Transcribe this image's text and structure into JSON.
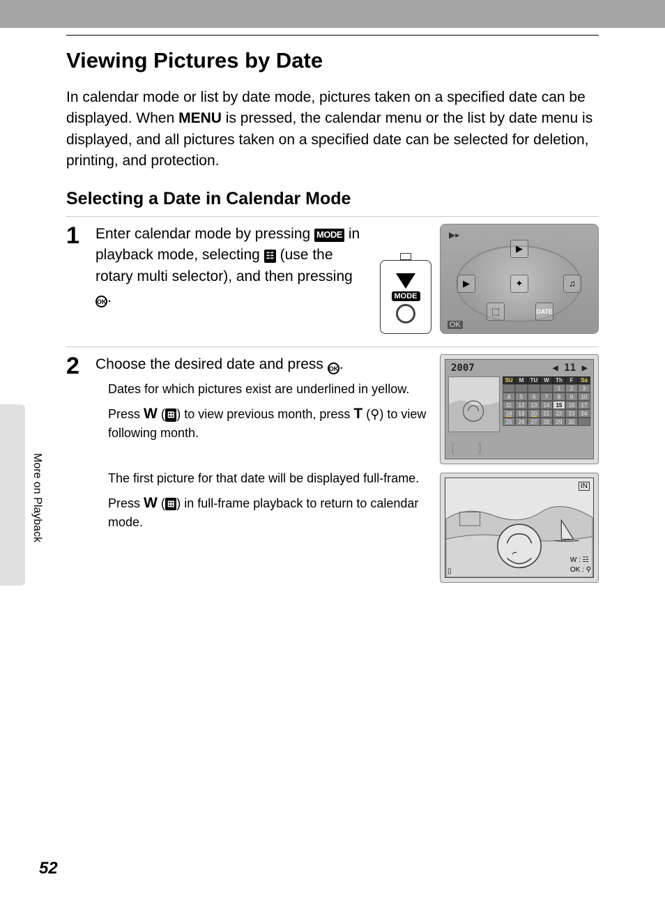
{
  "page_title": "Viewing Pictures by Date",
  "intro_parts": {
    "a": "In calendar mode or list by date mode, pictures taken on a specified date can be displayed. When ",
    "menu": "MENU",
    "b": " is pressed, the calendar menu or the list by date menu is displayed, and all pictures taken on a specified date can be selected for deletion, printing, and protection."
  },
  "subhead": "Selecting a Date in Calendar Mode",
  "steps": {
    "1": {
      "num": "1",
      "main_a": "Enter calendar mode by pressing ",
      "mode": "MODE",
      "main_b": " in playback mode, selecting ",
      "main_c": " (use the rotary multi selector), and then pressing ",
      "ok": "OK",
      "main_d": "."
    },
    "2": {
      "num": "2",
      "main_a": "Choose the desired date and press ",
      "ok": "OK",
      "main_b": ".",
      "sub1": "Dates for which pictures exist are underlined in yellow.",
      "sub2_a": "Press ",
      "w": "W",
      "sub2_b": " (",
      "sub2_c": ") to view previous month, press ",
      "t": "T",
      "sub2_d": " (",
      "sub2_e": ") to view following month.",
      "sub3": "The first picture for that date will be displayed full-frame.",
      "sub4_a": "Press ",
      "sub4_b": " (",
      "sub4_c": ") in full-frame playback to return to calendar mode."
    }
  },
  "fig_mode_label": "MODE",
  "lcd1": {
    "play": "▶▸",
    "ok": "OK",
    "icons": {
      "top": "▶",
      "left": "▶",
      "right": "♫",
      "mid": "✦",
      "bl": "⬚",
      "br": "DATE"
    }
  },
  "lcd2": {
    "year": "2007",
    "month": "11",
    "nav": {
      "l": "◀",
      "r": "▶"
    },
    "days": [
      "SU",
      "M",
      "TU",
      "W",
      "Th",
      "F",
      "Sa"
    ],
    "cells": [
      {
        "v": "",
        "e": 1
      },
      {
        "v": "",
        "e": 1
      },
      {
        "v": "",
        "e": 1
      },
      {
        "v": "",
        "e": 1
      },
      {
        "v": "1"
      },
      {
        "v": "2"
      },
      {
        "v": "3"
      },
      {
        "v": "4"
      },
      {
        "v": "5"
      },
      {
        "v": "6"
      },
      {
        "v": "7"
      },
      {
        "v": "8"
      },
      {
        "v": "9"
      },
      {
        "v": "10"
      },
      {
        "v": "11"
      },
      {
        "v": "12"
      },
      {
        "v": "13"
      },
      {
        "v": "14"
      },
      {
        "v": "15",
        "sel": 1
      },
      {
        "v": "16"
      },
      {
        "v": "17"
      },
      {
        "v": "18",
        "u": 1
      },
      {
        "v": "19"
      },
      {
        "v": "20",
        "u": 1
      },
      {
        "v": "21"
      },
      {
        "v": "22"
      },
      {
        "v": "23"
      },
      {
        "v": "24"
      },
      {
        "v": "25"
      },
      {
        "v": "26"
      },
      {
        "v": "27"
      },
      {
        "v": "28"
      },
      {
        "v": "29"
      },
      {
        "v": "30"
      },
      {
        "v": "",
        "e": 1
      }
    ]
  },
  "lcd3": {
    "in": "IN",
    "w": "W",
    "ok": "OK",
    "bl": "▯"
  },
  "side_label": "More on Playback",
  "page_number": "52",
  "icons": {
    "calendar": "☷",
    "thumb_grid": "⊞",
    "zoom": "⚲"
  }
}
